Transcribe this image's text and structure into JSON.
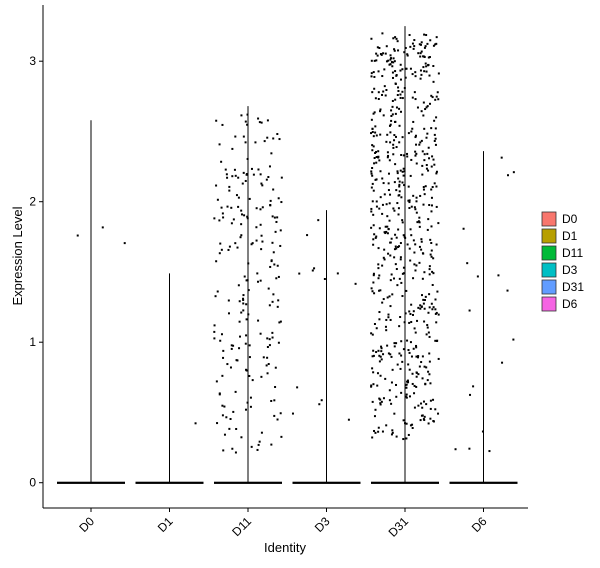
{
  "chart_data": {
    "type": "violin",
    "title": "",
    "xlabel": "Identity",
    "ylabel": "Expression Level",
    "categories": [
      "D0",
      "D1",
      "D11",
      "D3",
      "D31",
      "D6"
    ],
    "ylim": [
      -0.18,
      3.4
    ],
    "yticks": [
      0,
      1,
      2,
      3
    ],
    "grid": false,
    "legend_position": "right",
    "legend": [
      {
        "name": "D0",
        "color": "#F8766D"
      },
      {
        "name": "D1",
        "color": "#B79F00"
      },
      {
        "name": "D11",
        "color": "#00BA38"
      },
      {
        "name": "D3",
        "color": "#00BFC4"
      },
      {
        "name": "D31",
        "color": "#619CFF"
      },
      {
        "name": "D6",
        "color": "#F564E3"
      }
    ],
    "series": [
      {
        "category": "D0",
        "max": 2.58,
        "nonzero_points": 3
      },
      {
        "category": "D1",
        "max": 1.49,
        "nonzero_points": 1
      },
      {
        "category": "D11",
        "max": 2.68,
        "nonzero_points": 220
      },
      {
        "category": "D3",
        "max": 1.94,
        "nonzero_points": 13
      },
      {
        "category": "D31",
        "max": 3.25,
        "nonzero_points": 650
      },
      {
        "category": "D6",
        "max": 2.36,
        "nonzero_points": 17
      }
    ]
  }
}
